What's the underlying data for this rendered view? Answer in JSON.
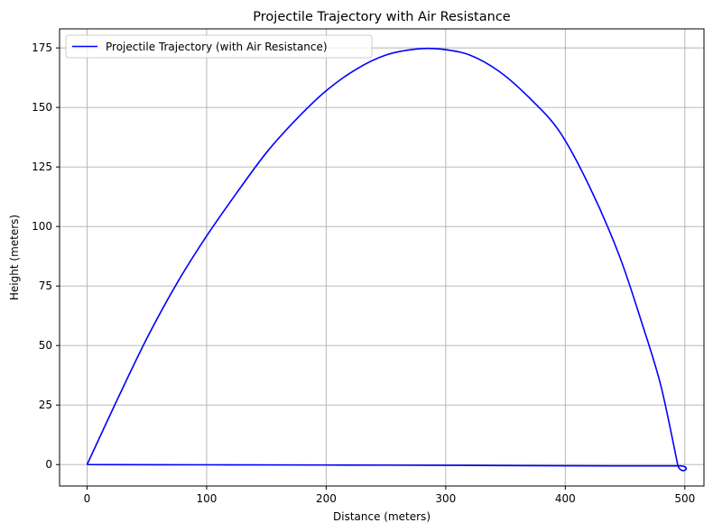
{
  "chart_data": {
    "type": "line",
    "title": "Projectile Trajectory with Air Resistance",
    "xlabel": "Distance (meters)",
    "ylabel": "Height (meters)",
    "xlim": [
      -23,
      516
    ],
    "ylim": [
      -9,
      183
    ],
    "xticks": [
      0,
      100,
      200,
      300,
      400,
      500
    ],
    "yticks": [
      0,
      25,
      50,
      75,
      100,
      125,
      150,
      175
    ],
    "grid": true,
    "legend_position": "top-left",
    "colors": {
      "series": "#0000ff",
      "grid": "#b0b0b0",
      "axes": "#000000",
      "background": "#ffffff",
      "legend_border": "#cccccc"
    },
    "series": [
      {
        "name": "Projectile Trajectory (with Air Resistance)",
        "x": [
          0,
          25,
          50,
          75,
          100,
          125,
          150,
          175,
          200,
          225,
          250,
          275,
          296,
          320,
          345,
          370,
          395,
          420,
          445,
          465,
          480,
          494,
          494,
          400,
          300,
          200,
          100,
          0
        ],
        "y": [
          0,
          27,
          53,
          76,
          96,
          114,
          131,
          145,
          157,
          166,
          172,
          174.5,
          174.5,
          172,
          165,
          154,
          140,
          117,
          88,
          58,
          33,
          0,
          -0.5,
          -0.5,
          -0.3,
          -0.2,
          -0.1,
          0
        ]
      }
    ]
  }
}
